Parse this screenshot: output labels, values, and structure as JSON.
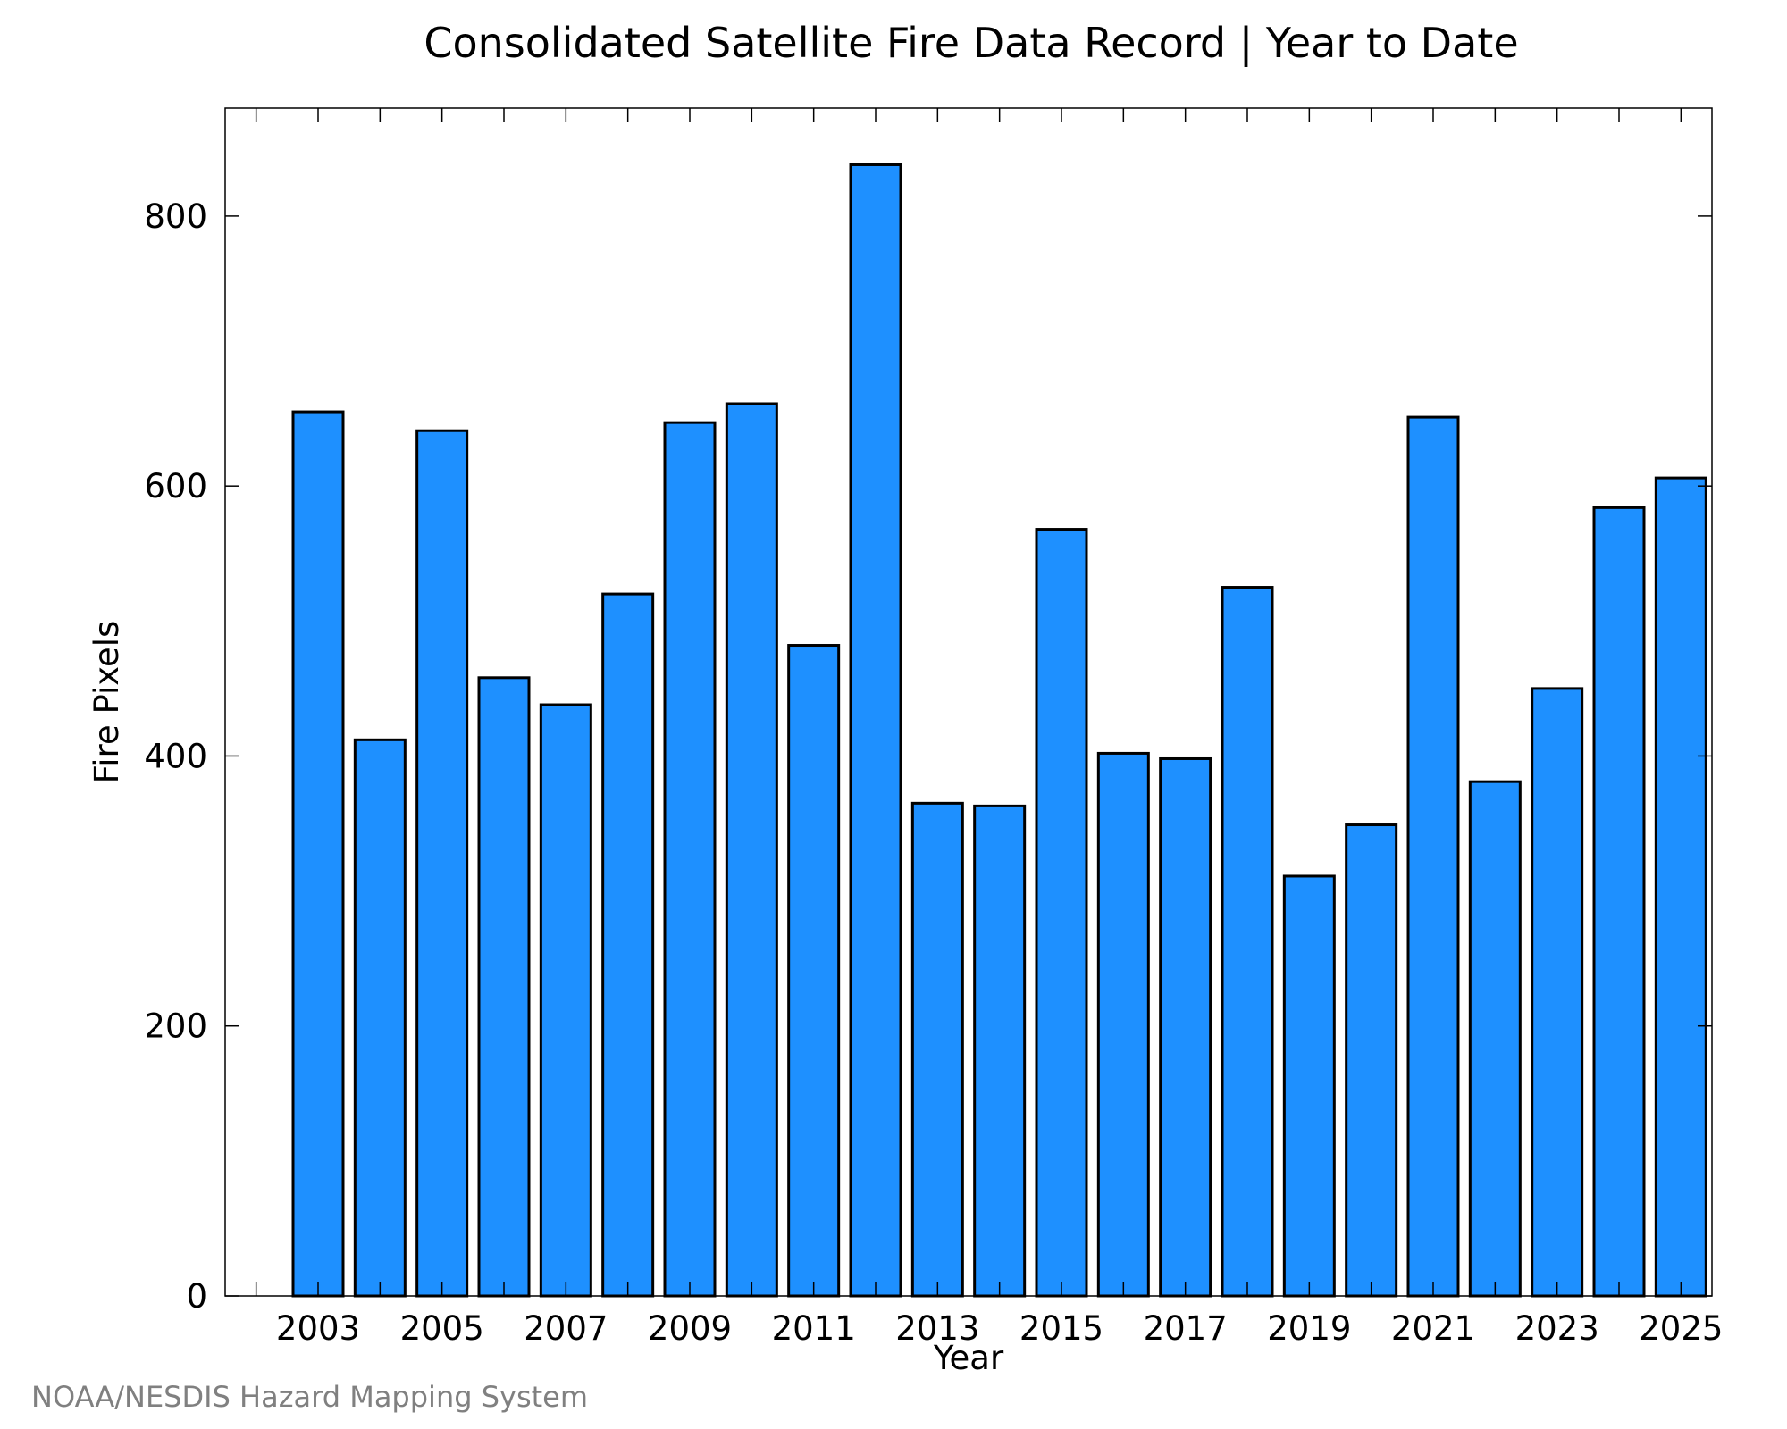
{
  "chart_data": {
    "type": "bar",
    "title": "Consolidated Satellite Fire Data Record | Year to Date",
    "xlabel": "Year",
    "ylabel": "Fire Pixels",
    "credit": "NOAA/NESDIS Hazard Mapping System",
    "categories": [
      2003,
      2004,
      2005,
      2006,
      2007,
      2008,
      2009,
      2010,
      2011,
      2012,
      2013,
      2014,
      2015,
      2016,
      2017,
      2018,
      2019,
      2020,
      2021,
      2022,
      2023,
      2024,
      2025
    ],
    "values": [
      655,
      412,
      641,
      458,
      438,
      520,
      647,
      661,
      482,
      838,
      365,
      363,
      568,
      402,
      398,
      525,
      311,
      349,
      651,
      381,
      450,
      584,
      606
    ],
    "x_tick_labels": [
      "2003",
      "2005",
      "2007",
      "2009",
      "2011",
      "2013",
      "2015",
      "2017",
      "2019",
      "2021",
      "2023",
      "2025"
    ],
    "y_ticks": [
      0,
      200,
      400,
      600,
      800
    ],
    "ylim": [
      0,
      880
    ],
    "xlim": [
      2001.5,
      2025.5
    ],
    "bar_color": "#1e90ff",
    "edge_color": "#000000",
    "credit_color": "#808080",
    "grid": false,
    "legend": false
  }
}
